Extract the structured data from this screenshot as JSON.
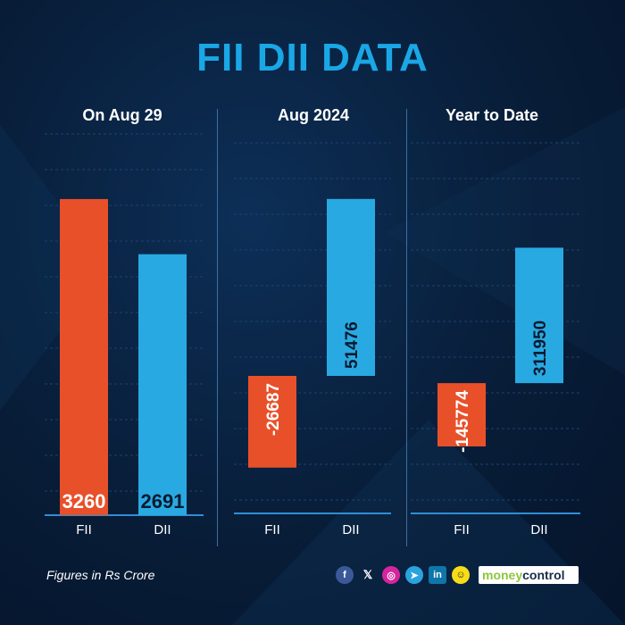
{
  "title": "FII DII DATA",
  "footnote": "Figures in Rs Crore",
  "social_icons": [
    "facebook-icon",
    "x-icon",
    "instagram-icon",
    "telegram-icon",
    "linkedin-icon",
    "snapchat-icon"
  ],
  "brand": {
    "part1": "money",
    "part2": "control"
  },
  "colors": {
    "fii": "#e8502a",
    "dii": "#29a9e1",
    "title": "#1aa7e6",
    "background": "#081d38"
  },
  "chart_data": [
    {
      "type": "bar",
      "title": "On Aug 29",
      "categories": [
        "FII",
        "DII"
      ],
      "values": [
        3260,
        2691
      ],
      "ylim": [
        0,
        3600
      ],
      "grid": true
    },
    {
      "type": "bar",
      "title": "Aug 2024",
      "categories": [
        "FII",
        "DII"
      ],
      "values": [
        -26687,
        51476
      ],
      "ylim": [
        -40000,
        60000
      ],
      "grid": true
    },
    {
      "type": "bar",
      "title": "Year to Date",
      "categories": [
        "FII",
        "DII"
      ],
      "values": [
        -145774,
        311950
      ],
      "ylim": [
        -300000,
        500000
      ],
      "grid": true
    }
  ]
}
